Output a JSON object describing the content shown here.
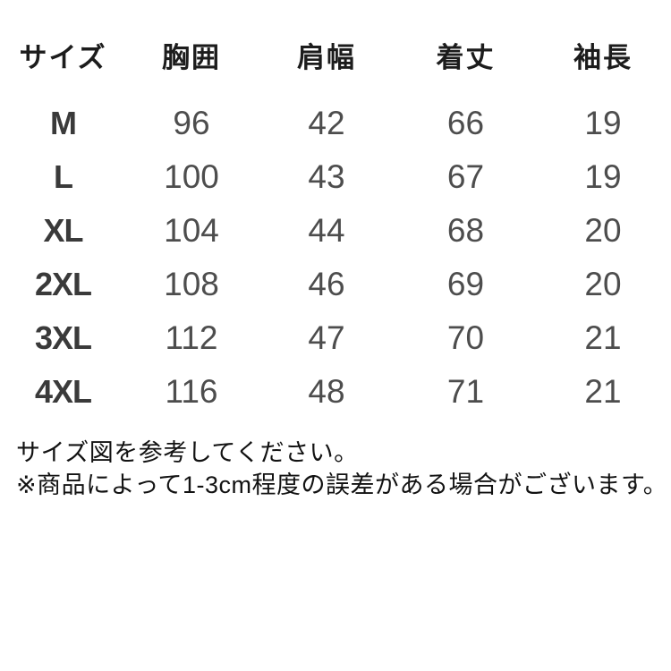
{
  "chart_data": {
    "type": "table",
    "title": "",
    "columns": [
      "サイズ",
      "胸囲",
      "肩幅",
      "着丈",
      "袖長"
    ],
    "rows": [
      [
        "M",
        "96",
        "42",
        "66",
        "19"
      ],
      [
        "L",
        "100",
        "43",
        "67",
        "19"
      ],
      [
        "XL",
        "104",
        "44",
        "68",
        "20"
      ],
      [
        "2XL",
        "108",
        "46",
        "69",
        "20"
      ],
      [
        "3XL",
        "112",
        "47",
        "70",
        "21"
      ],
      [
        "4XL",
        "116",
        "48",
        "71",
        "21"
      ]
    ],
    "layout_hints": {
      "grid": "off",
      "header_row": true,
      "alignment": "center"
    }
  },
  "notes": {
    "line1": "サイズ図を参考してください。",
    "line2": "※商品によって1-3cm程度の誤差がある場合がございます。"
  },
  "colors": {
    "background": "#ffffff",
    "header_text": "#1c1c1c",
    "size_label_text": "#3a3a3a",
    "value_text": "#4d4d4d",
    "note_text": "#121212"
  }
}
